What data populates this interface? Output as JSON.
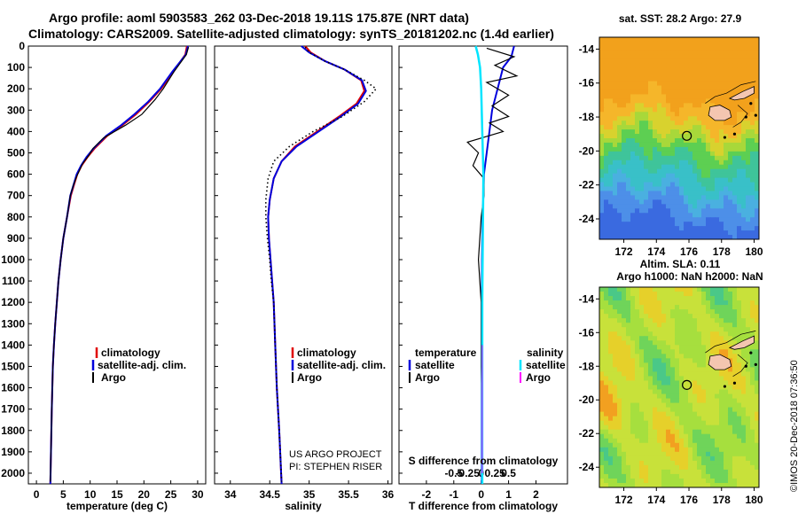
{
  "titles": {
    "line1": "Argo profile: aoml 5903583_262 03-Dec-2018 19.11S 175.87E (NRT data)",
    "line2": "Climatology: CARS2009. Satellite-adjusted climatology: synTS_20181202.nc (1.4d earlier)"
  },
  "colors": {
    "climatology": "#e00000",
    "satellite": "#0000dd",
    "argo": "#000000",
    "sat_salinity": "#00e5ff",
    "argo_salinity": "#ff00ff"
  },
  "depth_axis": {
    "min": 0,
    "max": 2050,
    "ticks": [
      0,
      100,
      200,
      300,
      400,
      500,
      600,
      700,
      800,
      900,
      1000,
      1100,
      1200,
      1300,
      1400,
      1500,
      1600,
      1700,
      1800,
      1900,
      2000
    ]
  },
  "chart_data": [
    {
      "type": "line",
      "name": "temperature",
      "xlabel": "temperature (deg C)",
      "xlim": [
        -1.5,
        31.5
      ],
      "xticks": [
        0,
        5,
        10,
        15,
        20,
        25,
        30
      ],
      "ylim": [
        0,
        2050
      ],
      "series": [
        {
          "name": "climatology",
          "x": [
            28.0,
            27.7,
            25.5,
            23.2,
            21,
            18.5,
            16,
            13.2,
            10.8,
            9.5,
            8.4,
            7.6,
            7,
            6.4,
            5.7,
            5.0,
            4.5,
            4.1,
            3.8,
            3.5,
            3.25,
            3.05,
            2.85,
            2.6
          ],
          "y": [
            0,
            40,
            120,
            200,
            260,
            320,
            370,
            420,
            480,
            520,
            560,
            600,
            650,
            700,
            800,
            900,
            1000,
            1100,
            1200,
            1300,
            1400,
            1500,
            1700,
            2050
          ]
        },
        {
          "name": "satellite-adj. clim.",
          "x": [
            28.2,
            27.8,
            25.3,
            23,
            20.8,
            18.2,
            15.8,
            13,
            10.6,
            9.3,
            8.3,
            7.5,
            6.9,
            6.3,
            5.7,
            5.0,
            4.5,
            4.1,
            3.8,
            3.5,
            3.25,
            3.05,
            2.85,
            2.6
          ],
          "y": [
            0,
            40,
            120,
            200,
            260,
            320,
            370,
            420,
            480,
            520,
            560,
            600,
            650,
            700,
            800,
            900,
            1000,
            1100,
            1200,
            1300,
            1400,
            1500,
            1700,
            2050
          ]
        },
        {
          "name": "Argo",
          "x": [
            28.3,
            27.9,
            25.6,
            23.6,
            22.1,
            19.6,
            16.6,
            12.5,
            10.5,
            9.8,
            8.6,
            7.5,
            6.9,
            6.3,
            5.7,
            5.0,
            4.5,
            4.1,
            3.8,
            3.5,
            3.25,
            3.05,
            2.85,
            2.6
          ],
          "y": [
            5,
            40,
            120,
            200,
            250,
            320,
            370,
            430,
            480,
            510,
            550,
            610,
            650,
            700,
            800,
            900,
            1000,
            1100,
            1200,
            1300,
            1400,
            1500,
            1700,
            2040
          ]
        }
      ]
    },
    {
      "type": "line",
      "name": "salinity",
      "xlabel": "salinity",
      "xlim": [
        33.8,
        36.05
      ],
      "xticks": [
        34,
        34.5,
        35,
        35.5,
        36
      ],
      "ylim": [
        0,
        2050
      ],
      "series": [
        {
          "name": "climatology",
          "x": [
            34.95,
            35.02,
            35.2,
            35.45,
            35.66,
            35.7,
            35.6,
            35.38,
            35.1,
            34.82,
            34.65,
            34.55,
            34.5,
            34.48,
            34.49,
            34.51,
            34.53,
            34.55,
            34.57,
            34.59,
            34.62,
            34.65
          ],
          "y": [
            0,
            30,
            70,
            110,
            160,
            210,
            270,
            330,
            400,
            470,
            540,
            620,
            720,
            800,
            900,
            1000,
            1100,
            1200,
            1400,
            1600,
            1800,
            2050
          ]
        },
        {
          "name": "satellite-adj. clim.",
          "x": [
            34.9,
            35.0,
            35.2,
            35.45,
            35.67,
            35.72,
            35.62,
            35.4,
            35.12,
            34.84,
            34.65,
            34.55,
            34.5,
            34.48,
            34.49,
            34.51,
            34.53,
            34.55,
            34.57,
            34.59,
            34.62,
            34.65
          ],
          "y": [
            0,
            30,
            70,
            110,
            160,
            210,
            270,
            330,
            400,
            470,
            540,
            620,
            720,
            800,
            900,
            1000,
            1100,
            1200,
            1400,
            1600,
            1800,
            2050
          ]
        },
        {
          "name": "Argo",
          "x": [
            34.95,
            35.0,
            35.2,
            35.45,
            35.7,
            35.85,
            35.7,
            35.42,
            35.05,
            34.75,
            34.55,
            34.48,
            34.45,
            34.45,
            34.47,
            34.5,
            34.52,
            34.55,
            34.57,
            34.59,
            34.62,
            34.65
          ],
          "y": [
            5,
            30,
            70,
            110,
            160,
            200,
            260,
            330,
            400,
            470,
            540,
            620,
            720,
            800,
            900,
            1000,
            1100,
            1200,
            1400,
            1600,
            1800,
            2040
          ]
        }
      ]
    },
    {
      "type": "line",
      "name": "difference from climatology",
      "xlabel": "T difference from climatology",
      "xlabel2": "S difference from climatology",
      "xlim": [
        -3,
        3.15
      ],
      "xticks": [
        -2,
        -1,
        0,
        1,
        2
      ],
      "xticklabels": [
        "-2",
        "-1",
        "0",
        "1",
        "2"
      ],
      "xticks2": [
        -1,
        -0.5,
        0,
        0.5,
        1
      ],
      "xticklabels2": [
        "-0.5",
        "-0.25",
        "0",
        "0.25",
        "0.5"
      ],
      "ylim": [
        0,
        2050
      ],
      "series": [
        {
          "name": "T satellite",
          "x": [
            1.2,
            1.1,
            0.8,
            0.6,
            0.4,
            0.3,
            0.2,
            0.1,
            0.08,
            0.05,
            0.03,
            0.02,
            0.02,
            0.02,
            0.02
          ],
          "y": [
            0,
            50,
            100,
            200,
            300,
            400,
            500,
            600,
            700,
            800,
            1000,
            1200,
            1500,
            1800,
            2050
          ]
        },
        {
          "name": "T Argo",
          "x": [
            0.2,
            1.2,
            0.5,
            1.3,
            0.2,
            1.0,
            0.4,
            1.0,
            0.3,
            0.8,
            -0.5,
            -0.1,
            -0.3,
            0.1,
            0.1,
            0.0,
            -0.1,
            0.0,
            0.0,
            0.05,
            0.05
          ],
          "y": [
            10,
            50,
            90,
            140,
            170,
            230,
            280,
            330,
            360,
            400,
            450,
            500,
            560,
            620,
            700,
            800,
            1000,
            1200,
            1500,
            1800,
            2030
          ]
        },
        {
          "name": "S satellite",
          "x": [
            -0.1,
            -0.06,
            -0.02,
            0,
            0.02,
            0.04,
            0.03,
            0.02,
            0.02,
            0.02
          ],
          "y": [
            0,
            40,
            100,
            200,
            400,
            600,
            900,
            1200,
            1600,
            2050
          ]
        },
        {
          "name": "S Argo",
          "x": [
            0.02,
            0.02,
            0.02
          ],
          "y": [
            1400,
            1700,
            2000
          ]
        }
      ],
      "legend": {
        "temperature": "temperature",
        "salinity": "salinity",
        "satellite": "satellite",
        "argo": "Argo"
      }
    },
    {
      "type": "heatmap",
      "name": "sst map",
      "title": "sat. SST: 28.2 Argo: 27.9",
      "xticks": [
        172,
        174,
        176,
        178,
        180
      ],
      "yticks": [
        -14,
        -16,
        -18,
        -20,
        -22,
        -24
      ],
      "xlim": [
        170.5,
        180.3
      ],
      "ylim": [
        -25.2,
        -13.3
      ],
      "profile_marker": {
        "lon": 175.87,
        "lat": -19.11
      }
    },
    {
      "type": "heatmap",
      "name": "sla map",
      "title1": "Altim. SLA: 0.11",
      "title2": "Argo h1000: NaN h2000: NaN",
      "xticks": [
        172,
        174,
        176,
        178,
        180
      ],
      "yticks": [
        -14,
        -16,
        -18,
        -20,
        -22,
        -24
      ],
      "xlim": [
        170.5,
        180.3
      ],
      "ylim": [
        -25.2,
        -13.3
      ],
      "profile_marker": {
        "lon": 175.87,
        "lat": -19.11
      }
    }
  ],
  "legends": {
    "climatology": "climatology",
    "satellite": "satellite-adj. clim.",
    "argo": "Argo"
  },
  "notes": {
    "project": "US ARGO PROJECT",
    "pi": "PI: STEPHEN RISER"
  },
  "credit": "©IMOS 20-Dec-2018 07:36:50"
}
